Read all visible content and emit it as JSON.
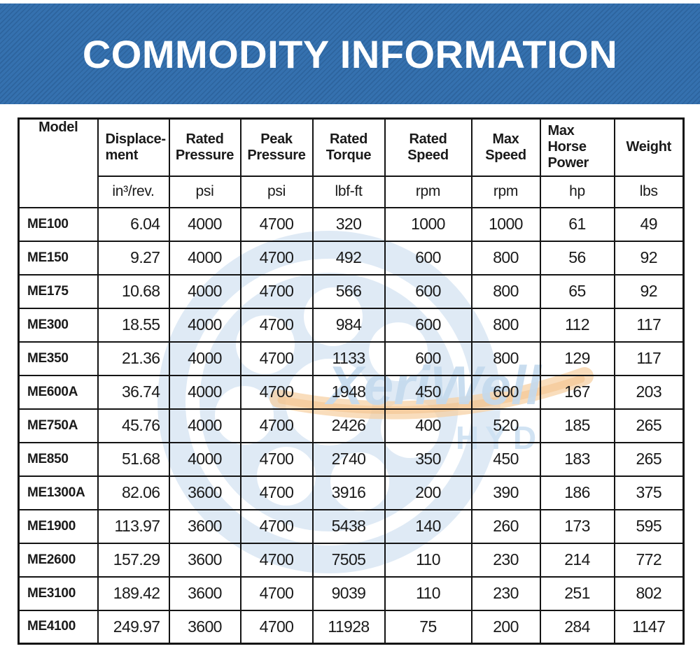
{
  "banner": {
    "title": "COMMODITY INFORMATION",
    "bg_color": "#3571af",
    "stripe_color": "#2d649e",
    "text_color": "#ffffff"
  },
  "watermark": {
    "brand": "XeriWell",
    "sub": "HYD",
    "circle_color": "#dfeaf5",
    "text_color": "#c4daee",
    "sub_color": "#cfe2f3",
    "swoosh_color": "#f2bc80"
  },
  "table": {
    "columns": [
      {
        "key": "model",
        "label": "Model",
        "unit": ""
      },
      {
        "key": "displacement",
        "label": "Displace-\nment",
        "unit": "in³/rev."
      },
      {
        "key": "rated_pressure",
        "label": "Rated\nPressure",
        "unit": "psi"
      },
      {
        "key": "peak_pressure",
        "label": "Peak\nPressure",
        "unit": "psi"
      },
      {
        "key": "rated_torque",
        "label": "Rated\nTorque",
        "unit": "lbf-ft"
      },
      {
        "key": "rated_speed",
        "label": "Rated\nSpeed",
        "unit": "rpm"
      },
      {
        "key": "max_speed",
        "label": "Max\nSpeed",
        "unit": "rpm"
      },
      {
        "key": "max_horse_power",
        "label": "Max\nHorse\nPower",
        "unit": "hp"
      },
      {
        "key": "weight",
        "label": "Weight",
        "unit": "lbs"
      }
    ],
    "rows": [
      {
        "model": "ME100",
        "values": [
          "6.04",
          "4000",
          "4700",
          "320",
          "1000",
          "1000",
          "61",
          "49"
        ]
      },
      {
        "model": "ME150",
        "values": [
          "9.27",
          "4000",
          "4700",
          "492",
          "600",
          "800",
          "56",
          "92"
        ]
      },
      {
        "model": "ME175",
        "values": [
          "10.68",
          "4000",
          "4700",
          "566",
          "600",
          "800",
          "65",
          "92"
        ]
      },
      {
        "model": "ME300",
        "values": [
          "18.55",
          "4000",
          "4700",
          "984",
          "600",
          "800",
          "112",
          "117"
        ]
      },
      {
        "model": "ME350",
        "values": [
          "21.36",
          "4000",
          "4700",
          "1133",
          "600",
          "800",
          "129",
          "117"
        ]
      },
      {
        "model": "ME600A",
        "values": [
          "36.74",
          "4000",
          "4700",
          "1948",
          "450",
          "600",
          "167",
          "203"
        ]
      },
      {
        "model": "ME750A",
        "values": [
          "45.76",
          "4000",
          "4700",
          "2426",
          "400",
          "520",
          "185",
          "265"
        ]
      },
      {
        "model": "ME850",
        "values": [
          "51.68",
          "4000",
          "4700",
          "2740",
          "350",
          "450",
          "183",
          "265"
        ]
      },
      {
        "model": "ME1300A",
        "values": [
          "82.06",
          "3600",
          "4700",
          "3916",
          "200",
          "390",
          "186",
          "375"
        ]
      },
      {
        "model": "ME1900",
        "values": [
          "113.97",
          "3600",
          "4700",
          "5438",
          "140",
          "260",
          "173",
          "595"
        ]
      },
      {
        "model": "ME2600",
        "values": [
          "157.29",
          "3600",
          "4700",
          "7505",
          "110",
          "230",
          "214",
          "772"
        ]
      },
      {
        "model": "ME3100",
        "values": [
          "189.42",
          "3600",
          "4700",
          "9039",
          "110",
          "230",
          "251",
          "802"
        ]
      },
      {
        "model": "ME4100",
        "values": [
          "249.97",
          "3600",
          "4700",
          "11928",
          "75",
          "200",
          "284",
          "1147"
        ]
      }
    ]
  }
}
